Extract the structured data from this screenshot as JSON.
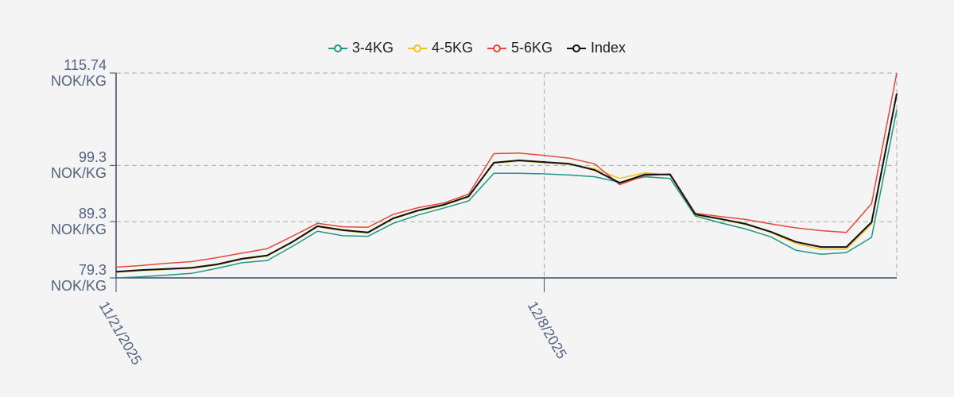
{
  "chart_data": {
    "type": "line",
    "x": [
      "2025-11-21",
      "2025-11-22",
      "2025-11-23",
      "2025-11-24",
      "2025-11-25",
      "2025-11-26",
      "2025-11-27",
      "2025-11-28",
      "2025-11-29",
      "2025-11-30",
      "2025-12-01",
      "2025-12-02",
      "2025-12-03",
      "2025-12-04",
      "2025-12-05",
      "2025-12-06",
      "2025-12-07",
      "2025-12-08",
      "2025-12-09",
      "2025-12-10",
      "2025-12-11",
      "2025-12-12",
      "2025-12-13",
      "2025-12-14",
      "2025-12-15",
      "2025-12-16",
      "2025-12-17",
      "2025-12-18",
      "2025-12-19",
      "2025-12-20",
      "2025-12-21",
      "2025-12-22"
    ],
    "series": [
      {
        "name": "3-4KG",
        "color": "#1f9688",
        "values": [
          79.3,
          79.5,
          79.8,
          80.1,
          81.0,
          82.0,
          82.4,
          84.9,
          87.6,
          86.8,
          86.7,
          89.0,
          90.5,
          91.7,
          93.0,
          97.9,
          97.9,
          97.8,
          97.6,
          97.3,
          96.3,
          97.3,
          97.0,
          90.3,
          89.1,
          88.0,
          86.6,
          84.2,
          83.5,
          83.8,
          86.5,
          109.2
        ]
      },
      {
        "name": "4-5KG",
        "color": "#f5c21b",
        "values": [
          80.3,
          80.6,
          80.8,
          81.0,
          81.6,
          82.6,
          83.2,
          85.6,
          88.4,
          87.7,
          87.3,
          89.8,
          91.2,
          92.2,
          93.7,
          99.7,
          100.1,
          99.8,
          99.5,
          98.7,
          97.0,
          98.0,
          97.6,
          90.5,
          89.7,
          88.8,
          87.4,
          85.4,
          84.4,
          84.4,
          88.9,
          112.0
        ]
      },
      {
        "name": "5-6KG",
        "color": "#e5473b",
        "values": [
          81.2,
          81.5,
          81.9,
          82.2,
          82.9,
          83.7,
          84.5,
          86.7,
          89.0,
          88.4,
          88.3,
          90.6,
          91.8,
          92.6,
          94.2,
          101.4,
          101.5,
          101.1,
          100.6,
          99.6,
          95.9,
          97.5,
          97.8,
          90.8,
          90.2,
          89.7,
          88.9,
          88.2,
          87.7,
          87.4,
          92.5,
          115.74
        ]
      },
      {
        "name": "Index",
        "color": "#111111",
        "values": [
          80.4,
          80.7,
          80.9,
          81.1,
          81.7,
          82.7,
          83.3,
          85.7,
          88.5,
          87.8,
          87.4,
          89.9,
          91.3,
          92.3,
          93.8,
          99.8,
          100.2,
          99.9,
          99.6,
          98.5,
          96.2,
          97.7,
          97.7,
          90.6,
          89.8,
          88.9,
          87.5,
          85.7,
          84.8,
          84.8,
          89.2,
          112.1
        ]
      }
    ],
    "xlim": [
      "2025-11-21",
      "2025-12-22"
    ],
    "xticks": [
      {
        "value": "2025-11-21",
        "label": "11/21/2025"
      },
      {
        "value": "2025-12-08",
        "label": "12/8/2025"
      }
    ],
    "ylim": [
      79.3,
      115.74
    ],
    "yticks": [
      {
        "value": 79.3,
        "label": "79.3\nNOK/KG"
      },
      {
        "value": 89.3,
        "label": "89.3\nNOK/KG"
      },
      {
        "value": 99.3,
        "label": "99.3\nNOK/KG"
      },
      {
        "value": 115.74,
        "label": "115.74\nNOK/KG"
      }
    ],
    "grid": true,
    "legend": "top"
  }
}
